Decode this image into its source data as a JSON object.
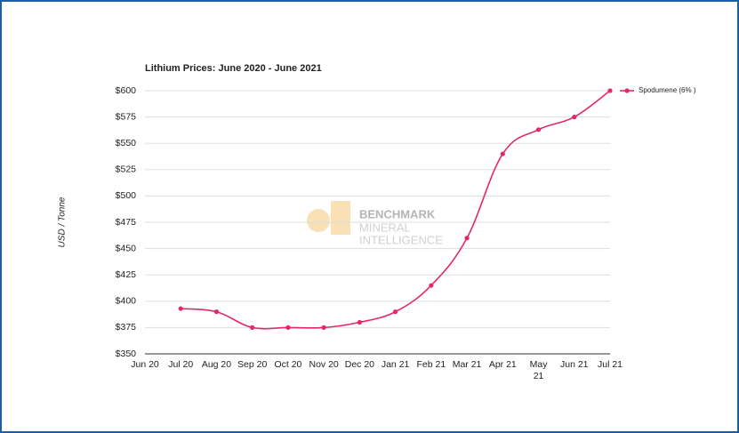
{
  "chart_data": {
    "type": "line",
    "title": "Lithium Prices: June 2020 - June 2021",
    "y_label": "USD / Tonne",
    "watermark": [
      "BENCHMARK",
      "MINERAL",
      "INTELLIGENCE"
    ],
    "categories": [
      "Jun 20",
      "Jul 20",
      "Aug 20",
      "Sep 20",
      "Oct 20",
      "Nov 20",
      "Dec 20",
      "Jan 21",
      "Feb 21",
      "Mar 21",
      "Apr 21",
      "May 21",
      "Jun 21",
      "Jul 21"
    ],
    "series": [
      {
        "name": "Spodumene (6% )",
        "color": "#e3286a",
        "values": [
          null,
          393,
          390,
          375,
          375,
          375,
          380,
          390,
          415,
          460,
          540,
          563,
          575,
          600
        ]
      }
    ],
    "ylim": [
      350,
      600
    ],
    "yticks": [
      {
        "value": 350,
        "label": "$350"
      },
      {
        "value": 375,
        "label": "$375"
      },
      {
        "value": 400,
        "label": "$400"
      },
      {
        "value": 425,
        "label": "$425"
      },
      {
        "value": 450,
        "label": "$450"
      },
      {
        "value": 475,
        "label": "$475"
      },
      {
        "value": 500,
        "label": "$500"
      },
      {
        "value": 525,
        "label": "$525"
      },
      {
        "value": 550,
        "label": "$550"
      },
      {
        "value": 575,
        "label": "$575"
      },
      {
        "value": 600,
        "label": "$600"
      }
    ],
    "grid": true,
    "legend": "right"
  }
}
